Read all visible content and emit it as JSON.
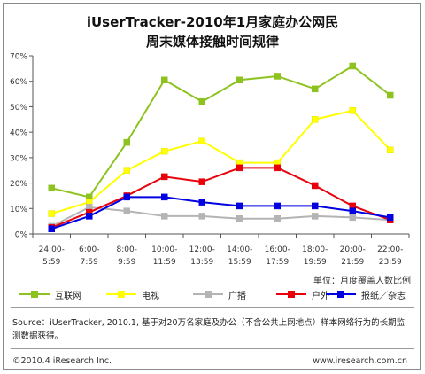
{
  "title_line1": "iUserTracker-2010年1月家庭办公网民",
  "title_line2": "周末媒体接触时间规律",
  "unit_note": "单位：月度覆盖人数比例",
  "source_text": "Source：iUserTracker, 2010.1, 基于对20万名家庭及办公（不含公共上网地点）样本网络行为的长期监测数据获得。",
  "footer_left": "©2010.4 iResearch Inc.",
  "footer_right": "www.iresearch.com.cn",
  "chart_data": {
    "type": "line",
    "categories": [
      [
        "24:00-",
        "5:59"
      ],
      [
        "6:00-",
        "7:59"
      ],
      [
        "8:00-",
        "9:59"
      ],
      [
        "10:00-",
        "11:59"
      ],
      [
        "12:00-",
        "13:59"
      ],
      [
        "14:00-",
        "15:59"
      ],
      [
        "16:00-",
        "17:59"
      ],
      [
        "18:00-",
        "19:59"
      ],
      [
        "20:00-",
        "21:59"
      ],
      [
        "22:00-",
        "23:59"
      ]
    ],
    "y_ticks": [
      "0%",
      "10%",
      "20%",
      "30%",
      "40%",
      "50%",
      "60%",
      "70%"
    ],
    "ylim": [
      0,
      70
    ],
    "grid": false,
    "legend_position": "bottom",
    "series": [
      {
        "name": "互联网",
        "color": "#8dc21f",
        "marker": "square",
        "values": [
          18,
          14.5,
          36,
          60.5,
          52,
          60.5,
          62,
          57,
          66,
          54.5
        ]
      },
      {
        "name": "电视",
        "color": "#ffff00",
        "marker": "square",
        "values": [
          8,
          12.5,
          25,
          32.5,
          36.5,
          28,
          28,
          45,
          48.5,
          33
        ]
      },
      {
        "name": "广播",
        "color": "#b4b4b4",
        "marker": "square",
        "values": [
          3,
          10.5,
          9,
          7,
          7,
          6,
          6,
          7,
          6.5,
          5.5
        ]
      },
      {
        "name": "户外",
        "color": "#e8000b",
        "marker": "square",
        "values": [
          2.5,
          8.5,
          15,
          22.5,
          20.5,
          26,
          26,
          19,
          11,
          5.5
        ]
      },
      {
        "name": "报纸／杂志",
        "color": "#0000e0",
        "marker": "square",
        "values": [
          2,
          7,
          14.5,
          14.5,
          12.5,
          11,
          11,
          11,
          9,
          6.5
        ]
      }
    ]
  }
}
